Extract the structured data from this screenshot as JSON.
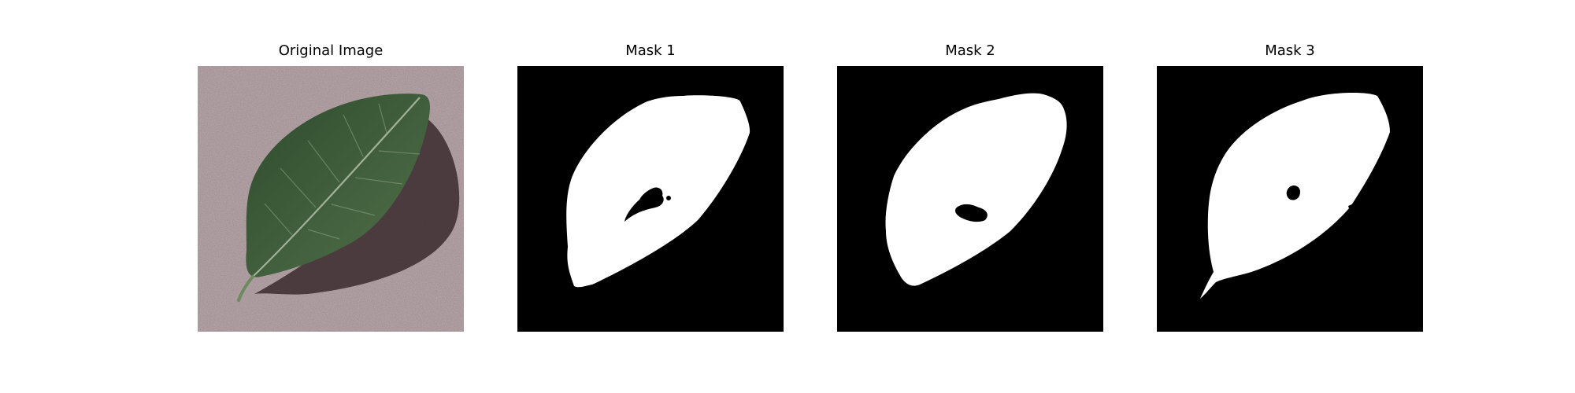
{
  "panels": [
    {
      "title": "Original Image",
      "image": "leaf-photo"
    },
    {
      "title": "Mask 1",
      "image": "binary-mask"
    },
    {
      "title": "Mask 2",
      "image": "binary-mask"
    },
    {
      "title": "Mask 3",
      "image": "binary-mask"
    }
  ],
  "colors": {
    "background": "#ffffff",
    "mask_foreground": "#ffffff",
    "mask_background": "#000000",
    "leaf_dark": "#2f4a2c",
    "leaf_mid": "#4f6d47",
    "surface": "#9c898d"
  }
}
